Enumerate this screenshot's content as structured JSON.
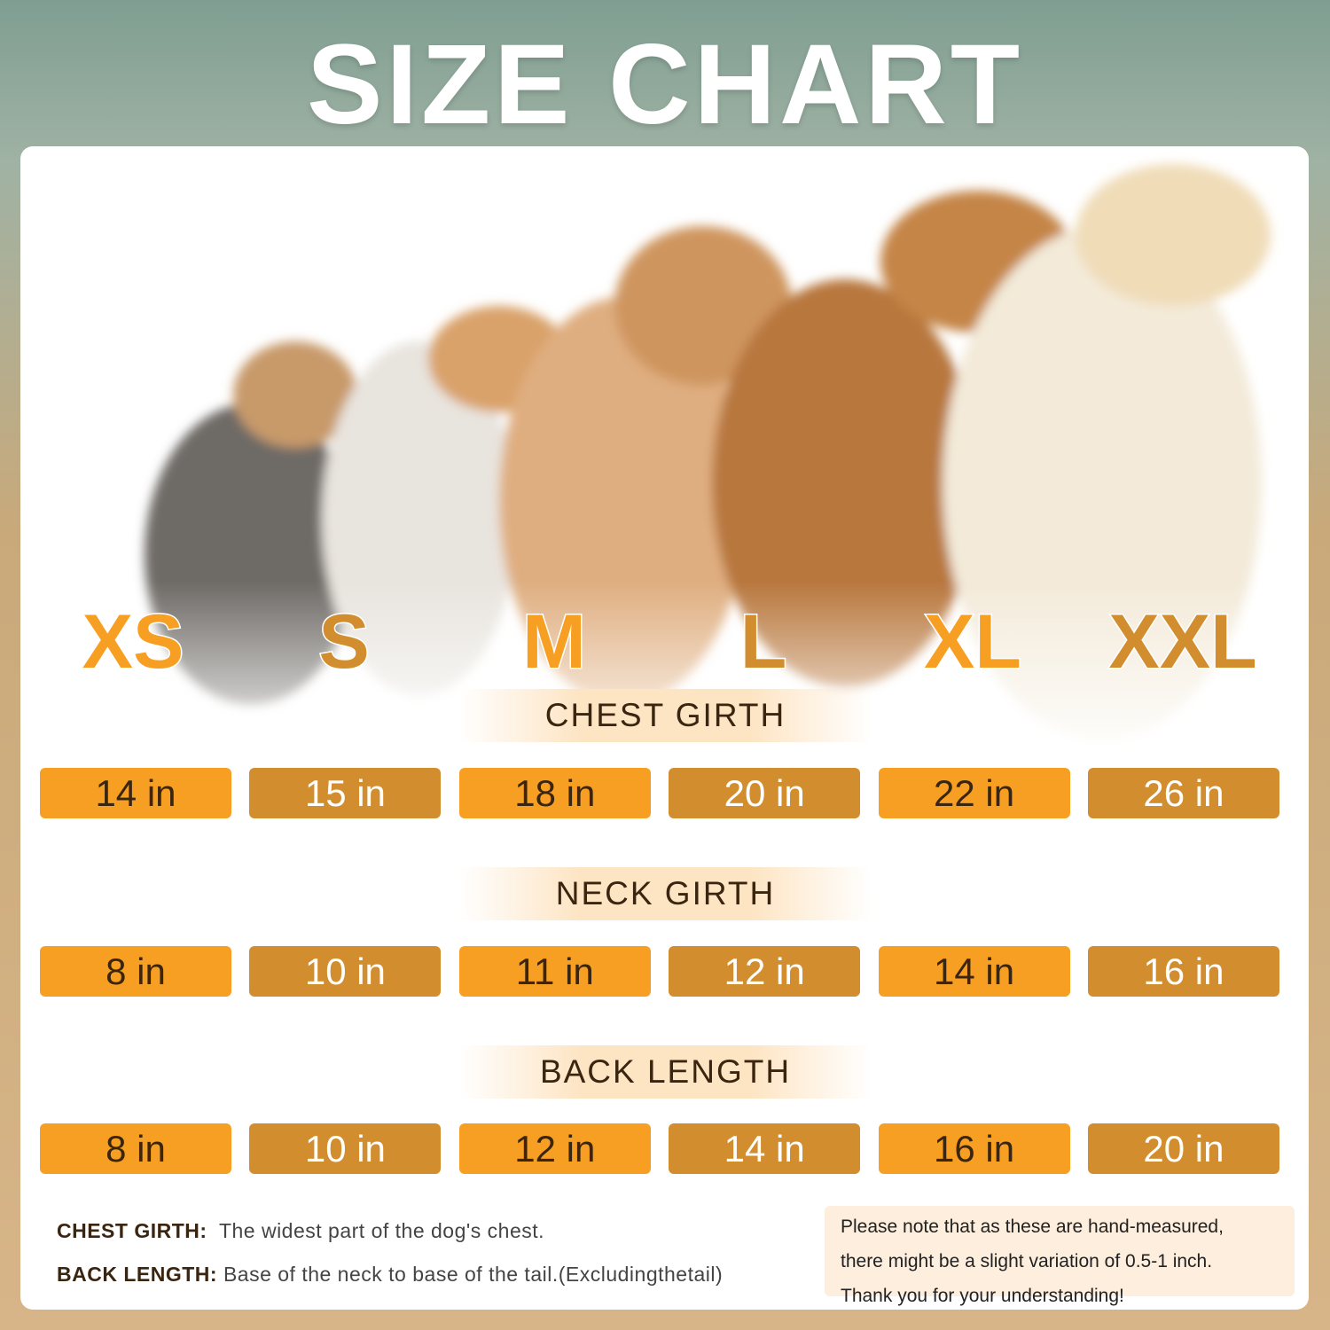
{
  "title": "SIZE CHART",
  "sizes": [
    "XS",
    "S",
    "M",
    "L",
    "XL",
    "XXL"
  ],
  "colors": {
    "orange": "#f79f22",
    "brown": "#d28e2e",
    "dark_text": "#3a2510"
  },
  "sections": {
    "chest": {
      "label": "CHEST GIRTH",
      "values": [
        "14 in",
        "15 in",
        "18 in",
        "20 in",
        "22 in",
        "26 in"
      ]
    },
    "neck": {
      "label": "NECK GIRTH",
      "values": [
        "8 in",
        "10 in",
        "11 in",
        "12 in",
        "14 in",
        "16 in"
      ]
    },
    "back": {
      "label": "BACK LENGTH",
      "values": [
        "8 in",
        "10 in",
        "12 in",
        "14 in",
        "16 in",
        "20 in"
      ]
    }
  },
  "definitions": {
    "chest_term": "CHEST GIRTH:",
    "chest_text": "The widest part of the dog's chest.",
    "back_term": "BACK LENGTH:",
    "back_text": "Base of the neck to base of the tail.(Excludingthetail)"
  },
  "note": {
    "line1": "Please note that as these are hand-measured,",
    "line2": "there might be a slight variation of 0.5-1 inch.",
    "line3": "Thank you for your understanding!"
  }
}
